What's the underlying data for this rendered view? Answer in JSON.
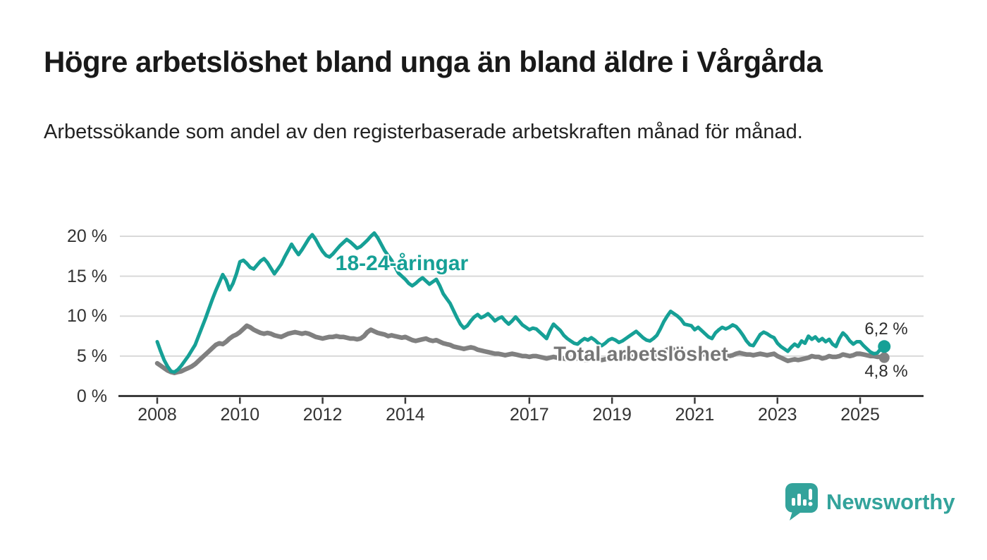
{
  "header": {
    "title": "Högre arbetslöshet bland unga än bland äldre i Vårgårda",
    "subtitle": "Arbetssökande som andel av den registerbaserade arbetskraften månad för månad."
  },
  "colors": {
    "teal": "#16A096",
    "gray": "#808080",
    "grid": "#d9d9d9",
    "axis": "#3b3b3b",
    "title_text": "#191919",
    "tick_text": "#333333",
    "value_label_text": "#2d2d2d"
  },
  "branding": {
    "logo_text": "Newsworthy",
    "logo_icon": "bar-chart-speech-bubble-icon",
    "logo_color": "#33A39B"
  },
  "chart_data": {
    "type": "line",
    "title": "Högre arbetslöshet bland unga än bland äldre i Vårgårda",
    "subtitle": "Arbetssökande som andel av den registerbaserade arbetskraften månad för månad.",
    "xlabel": "",
    "ylabel": "",
    "x_unit": "month",
    "x_start": "2008-01",
    "x_end": "2025-08",
    "x_tick_years": [
      2008,
      2010,
      2012,
      2014,
      2017,
      2019,
      2021,
      2023,
      2025
    ],
    "y_ticks": [
      "20 %",
      "15 %",
      "10 %",
      "5 %",
      "0 %"
    ],
    "y_tick_values": [
      20,
      15,
      10,
      5,
      0
    ],
    "ylim": [
      0,
      21
    ],
    "grid": "horizontal",
    "legend_position": "inline-annotations",
    "series": [
      {
        "name": "18-24-åringar",
        "color": "#16A096",
        "end_label": "6,2 %",
        "end_value": 6.2,
        "values": [
          6.8,
          5.6,
          4.5,
          3.7,
          3.1,
          3.0,
          3.3,
          3.8,
          4.4,
          5.0,
          5.7,
          6.4,
          7.5,
          8.6,
          9.7,
          10.9,
          12.1,
          13.2,
          14.2,
          15.2,
          14.5,
          13.3,
          14.1,
          15.3,
          16.8,
          17.0,
          16.6,
          16.1,
          15.9,
          16.4,
          16.9,
          17.2,
          16.7,
          16.0,
          15.3,
          15.9,
          16.5,
          17.4,
          18.2,
          19.0,
          18.3,
          17.7,
          18.3,
          19.0,
          19.7,
          20.2,
          19.6,
          18.8,
          18.1,
          17.6,
          17.4,
          17.8,
          18.3,
          18.8,
          19.2,
          19.6,
          19.3,
          18.9,
          18.5,
          18.7,
          19.1,
          19.5,
          20.0,
          20.4,
          19.8,
          19.0,
          18.2,
          17.6,
          17.0,
          16.2,
          15.4,
          15.0,
          14.6,
          14.1,
          13.8,
          14.1,
          14.5,
          14.8,
          14.4,
          14.0,
          14.3,
          14.6,
          13.8,
          12.8,
          12.2,
          11.6,
          10.7,
          9.8,
          9.0,
          8.5,
          8.8,
          9.4,
          9.9,
          10.2,
          9.8,
          10.0,
          10.3,
          9.9,
          9.4,
          9.7,
          9.9,
          9.4,
          9.0,
          9.4,
          9.9,
          9.4,
          8.9,
          8.6,
          8.3,
          8.5,
          8.4,
          8.0,
          7.6,
          7.2,
          8.2,
          9.0,
          8.6,
          8.2,
          7.6,
          7.2,
          6.9,
          6.6,
          6.5,
          6.9,
          7.2,
          7.0,
          7.3,
          7.0,
          6.6,
          6.3,
          6.6,
          7.0,
          7.2,
          7.0,
          6.7,
          6.9,
          7.2,
          7.5,
          7.8,
          8.1,
          7.7,
          7.3,
          7.0,
          6.9,
          7.2,
          7.6,
          8.4,
          9.3,
          10.0,
          10.6,
          10.3,
          10.0,
          9.6,
          9.0,
          8.9,
          8.8,
          8.3,
          8.6,
          8.2,
          7.8,
          7.4,
          7.2,
          7.9,
          8.3,
          8.6,
          8.4,
          8.6,
          8.9,
          8.7,
          8.2,
          7.6,
          6.9,
          6.4,
          6.3,
          7.0,
          7.7,
          8.0,
          7.8,
          7.5,
          7.3,
          6.6,
          6.2,
          5.9,
          5.6,
          6.1,
          6.5,
          6.2,
          6.9,
          6.6,
          7.5,
          7.1,
          7.4,
          6.9,
          7.2,
          6.8,
          7.1,
          6.5,
          6.2,
          7.2,
          7.9,
          7.5,
          6.9,
          6.5,
          6.8,
          6.8,
          6.3,
          5.9,
          5.5,
          5.3,
          5.4,
          5.9,
          6.2
        ]
      },
      {
        "name": "Total arbetslöshet",
        "color": "#808080",
        "end_label": "4,8 %",
        "end_value": 4.8,
        "values": [
          4.1,
          3.8,
          3.5,
          3.2,
          3.0,
          2.9,
          3.0,
          3.1,
          3.3,
          3.5,
          3.7,
          4.0,
          4.4,
          4.8,
          5.2,
          5.6,
          6.0,
          6.4,
          6.6,
          6.5,
          6.8,
          7.2,
          7.5,
          7.7,
          8.0,
          8.4,
          8.8,
          8.6,
          8.3,
          8.1,
          7.9,
          7.8,
          7.9,
          7.8,
          7.6,
          7.5,
          7.4,
          7.6,
          7.8,
          7.9,
          8.0,
          7.9,
          7.8,
          7.9,
          7.8,
          7.6,
          7.4,
          7.3,
          7.2,
          7.3,
          7.4,
          7.4,
          7.5,
          7.4,
          7.4,
          7.3,
          7.2,
          7.2,
          7.1,
          7.2,
          7.5,
          8.0,
          8.3,
          8.1,
          7.9,
          7.8,
          7.7,
          7.5,
          7.6,
          7.5,
          7.4,
          7.3,
          7.4,
          7.2,
          7.0,
          6.9,
          7.0,
          7.1,
          7.2,
          7.0,
          6.9,
          7.0,
          6.8,
          6.6,
          6.5,
          6.4,
          6.2,
          6.1,
          6.0,
          5.9,
          6.0,
          6.1,
          6.0,
          5.8,
          5.7,
          5.6,
          5.5,
          5.4,
          5.3,
          5.3,
          5.2,
          5.1,
          5.2,
          5.3,
          5.2,
          5.1,
          5.0,
          5.0,
          4.9,
          5.0,
          5.0,
          4.9,
          4.8,
          4.7,
          4.8,
          4.9,
          4.8,
          4.7,
          4.7,
          4.6,
          4.6,
          4.7,
          4.7,
          4.6,
          4.5,
          4.5,
          4.6,
          4.7,
          4.6,
          4.5,
          4.6,
          4.7,
          4.8,
          4.8,
          4.7,
          4.8,
          4.9,
          5.0,
          5.1,
          5.0,
          4.9,
          4.9,
          5.0,
          4.9,
          5.0,
          5.1,
          5.3,
          5.6,
          5.8,
          5.9,
          5.8,
          5.7,
          5.6,
          5.5,
          5.4,
          5.4,
          5.5,
          5.4,
          5.3,
          5.2,
          5.1,
          5.0,
          5.1,
          5.2,
          5.1,
          5.0,
          5.0,
          5.1,
          5.3,
          5.4,
          5.3,
          5.2,
          5.2,
          5.1,
          5.2,
          5.3,
          5.2,
          5.1,
          5.2,
          5.3,
          5.0,
          4.8,
          4.6,
          4.4,
          4.5,
          4.6,
          4.5,
          4.6,
          4.7,
          4.8,
          5.0,
          4.9,
          4.9,
          4.7,
          4.8,
          5.0,
          4.9,
          4.9,
          5.0,
          5.2,
          5.1,
          5.0,
          5.1,
          5.3,
          5.3,
          5.2,
          5.1,
          5.0,
          5.0,
          4.9,
          4.9,
          4.8
        ]
      }
    ]
  }
}
